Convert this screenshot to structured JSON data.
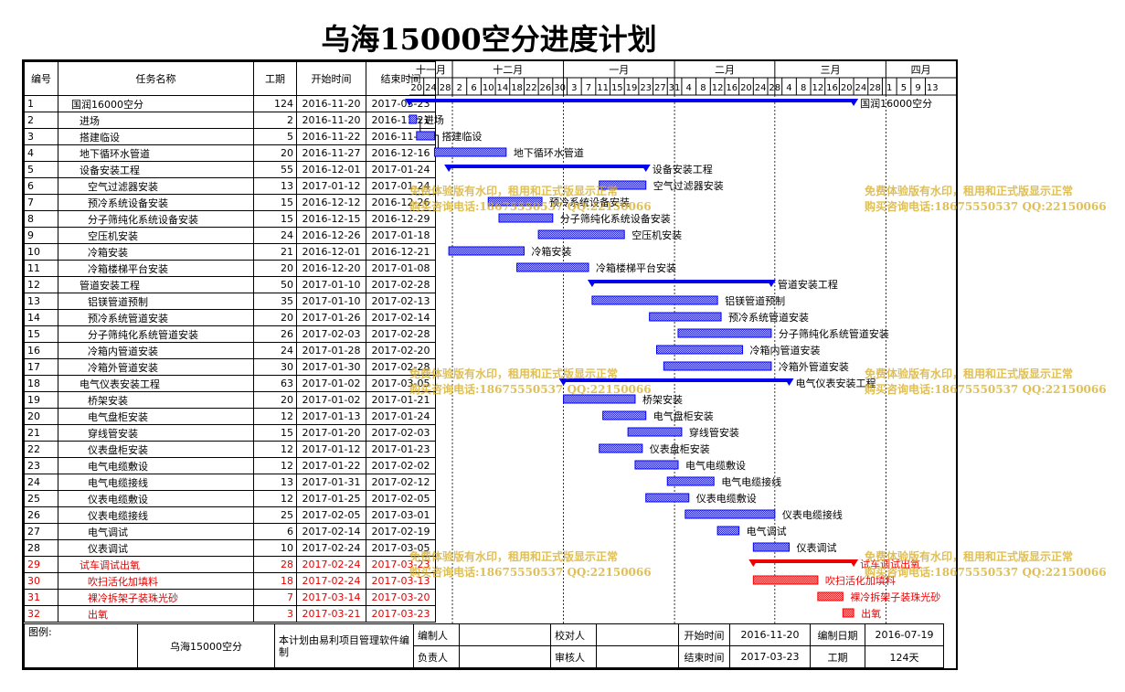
{
  "title": "乌海15000空分进度计划",
  "headers": {
    "id": "编号",
    "name": "任务名称",
    "dur": "工期",
    "start": "开始时间",
    "end": "结束时间"
  },
  "timeline": {
    "months": [
      "十一月",
      "十二月",
      "一月",
      "二月",
      "三月",
      "四月"
    ],
    "days": [
      "20",
      "24",
      "28",
      "2",
      "6",
      "10",
      "14",
      "18",
      "22",
      "26",
      "30",
      "3",
      "7",
      "11",
      "15",
      "19",
      "23",
      "27",
      "31",
      "4",
      "8",
      "12",
      "16",
      "20",
      "24",
      "28",
      "4",
      "8",
      "12",
      "16",
      "20",
      "24",
      "28",
      "1",
      "5",
      "9",
      "13"
    ]
  },
  "tasks": [
    {
      "id": "1",
      "name": "国润16000空分",
      "dur": "124",
      "start": "2016-11-20",
      "end": "2017-03-23",
      "lvl": 0,
      "type": "summary",
      "color": "blue"
    },
    {
      "id": "2",
      "name": "进场",
      "dur": "2",
      "start": "2016-11-20",
      "end": "2016-11-21",
      "lvl": 1,
      "type": "task",
      "color": "blue"
    },
    {
      "id": "3",
      "name": "搭建临设",
      "dur": "5",
      "start": "2016-11-22",
      "end": "2016-11-26",
      "lvl": 1,
      "type": "task",
      "color": "blue"
    },
    {
      "id": "4",
      "name": "地下循环水管道",
      "dur": "20",
      "start": "2016-11-27",
      "end": "2016-12-16",
      "lvl": 1,
      "type": "task",
      "color": "blue"
    },
    {
      "id": "5",
      "name": "设备安装工程",
      "dur": "55",
      "start": "2016-12-01",
      "end": "2017-01-24",
      "lvl": 1,
      "type": "summary",
      "color": "blue"
    },
    {
      "id": "6",
      "name": "空气过滤器安装",
      "dur": "13",
      "start": "2017-01-12",
      "end": "2017-01-24",
      "lvl": 2,
      "type": "task",
      "color": "blue"
    },
    {
      "id": "7",
      "name": "预冷系统设备安装",
      "dur": "15",
      "start": "2016-12-12",
      "end": "2016-12-26",
      "lvl": 2,
      "type": "task",
      "color": "blue"
    },
    {
      "id": "8",
      "name": "分子筛纯化系统设备安装",
      "dur": "15",
      "start": "2016-12-15",
      "end": "2016-12-29",
      "lvl": 2,
      "type": "task",
      "color": "blue"
    },
    {
      "id": "9",
      "name": "空压机安装",
      "dur": "24",
      "start": "2016-12-26",
      "end": "2017-01-18",
      "lvl": 2,
      "type": "task",
      "color": "blue"
    },
    {
      "id": "10",
      "name": "冷箱安装",
      "dur": "21",
      "start": "2016-12-01",
      "end": "2016-12-21",
      "lvl": 2,
      "type": "task",
      "color": "blue"
    },
    {
      "id": "11",
      "name": "冷箱楼梯平台安装",
      "dur": "20",
      "start": "2016-12-20",
      "end": "2017-01-08",
      "lvl": 2,
      "type": "task",
      "color": "blue"
    },
    {
      "id": "12",
      "name": "管道安装工程",
      "dur": "50",
      "start": "2017-01-10",
      "end": "2017-02-28",
      "lvl": 1,
      "type": "summary",
      "color": "blue"
    },
    {
      "id": "13",
      "name": "铝镁管道预制",
      "dur": "35",
      "start": "2017-01-10",
      "end": "2017-02-13",
      "lvl": 2,
      "type": "task",
      "color": "blue"
    },
    {
      "id": "14",
      "name": "预冷系统管道安装",
      "dur": "20",
      "start": "2017-01-26",
      "end": "2017-02-14",
      "lvl": 2,
      "type": "task",
      "color": "blue"
    },
    {
      "id": "15",
      "name": "分子筛纯化系统管道安装",
      "dur": "26",
      "start": "2017-02-03",
      "end": "2017-02-28",
      "lvl": 2,
      "type": "task",
      "color": "blue"
    },
    {
      "id": "16",
      "name": "冷箱内管道安装",
      "dur": "24",
      "start": "2017-01-28",
      "end": "2017-02-20",
      "lvl": 2,
      "type": "task",
      "color": "blue"
    },
    {
      "id": "17",
      "name": "冷箱外管道安装",
      "dur": "30",
      "start": "2017-01-30",
      "end": "2017-02-28",
      "lvl": 2,
      "type": "task",
      "color": "blue"
    },
    {
      "id": "18",
      "name": "电气仪表安装工程",
      "dur": "63",
      "start": "2017-01-02",
      "end": "2017-03-05",
      "lvl": 1,
      "type": "summary",
      "color": "blue"
    },
    {
      "id": "19",
      "name": "桥架安装",
      "dur": "20",
      "start": "2017-01-02",
      "end": "2017-01-21",
      "lvl": 2,
      "type": "task",
      "color": "blue"
    },
    {
      "id": "20",
      "name": "电气盘柜安装",
      "dur": "12",
      "start": "2017-01-13",
      "end": "2017-01-24",
      "lvl": 2,
      "type": "task",
      "color": "blue"
    },
    {
      "id": "21",
      "name": "穿线管安装",
      "dur": "15",
      "start": "2017-01-20",
      "end": "2017-02-03",
      "lvl": 2,
      "type": "task",
      "color": "blue"
    },
    {
      "id": "22",
      "name": "仪表盘柜安装",
      "dur": "12",
      "start": "2017-01-12",
      "end": "2017-01-23",
      "lvl": 2,
      "type": "task",
      "color": "blue"
    },
    {
      "id": "23",
      "name": "电气电缆敷设",
      "dur": "12",
      "start": "2017-01-22",
      "end": "2017-02-02",
      "lvl": 2,
      "type": "task",
      "color": "blue"
    },
    {
      "id": "24",
      "name": "电气电缆接线",
      "dur": "13",
      "start": "2017-01-31",
      "end": "2017-02-12",
      "lvl": 2,
      "type": "task",
      "color": "blue"
    },
    {
      "id": "25",
      "name": "仪表电缆敷设",
      "dur": "12",
      "start": "2017-01-25",
      "end": "2017-02-05",
      "lvl": 2,
      "type": "task",
      "color": "blue"
    },
    {
      "id": "26",
      "name": "仪表电缆接线",
      "dur": "25",
      "start": "2017-02-05",
      "end": "2017-03-01",
      "lvl": 2,
      "type": "task",
      "color": "blue"
    },
    {
      "id": "27",
      "name": "电气调试",
      "dur": "6",
      "start": "2017-02-14",
      "end": "2017-02-19",
      "lvl": 2,
      "type": "task",
      "color": "blue"
    },
    {
      "id": "28",
      "name": "仪表调试",
      "dur": "10",
      "start": "2017-02-24",
      "end": "2017-03-05",
      "lvl": 2,
      "type": "task",
      "color": "blue"
    },
    {
      "id": "29",
      "name": "试车调试出氧",
      "dur": "28",
      "start": "2017-02-24",
      "end": "2017-03-23",
      "lvl": 1,
      "type": "summary",
      "color": "red"
    },
    {
      "id": "30",
      "name": "吹扫活化加填料",
      "dur": "18",
      "start": "2017-02-24",
      "end": "2017-03-13",
      "lvl": 2,
      "type": "task",
      "color": "red"
    },
    {
      "id": "31",
      "name": "裸冷拆架子装珠光砂",
      "dur": "7",
      "start": "2017-03-14",
      "end": "2017-03-20",
      "lvl": 2,
      "type": "task",
      "color": "red"
    },
    {
      "id": "32",
      "name": "出氧",
      "dur": "3",
      "start": "2017-03-21",
      "end": "2017-03-23",
      "lvl": 2,
      "type": "task",
      "color": "red"
    }
  ],
  "footer": {
    "legend_label": "图例:",
    "project": "乌海15000空分",
    "note": "本计划由易利项目管理软件编制",
    "labels": {
      "editor": "编制人",
      "checker": "校对人",
      "start": "开始时间",
      "date": "编制日期",
      "owner": "负责人",
      "reviewer": "审核人",
      "end": "结束时间",
      "duration": "工期"
    },
    "values": {
      "start": "2016-11-20",
      "date": "2016-07-19",
      "end": "2017-03-23",
      "duration": "124天"
    }
  },
  "watermark": {
    "line1": "免费体验版有水印，租用和正式版显示正常",
    "line2": "购买咨询电话:18675550537 QQ:22150066"
  },
  "colors": {
    "blue": "#0000ee",
    "red": "#ee0000",
    "border": "#000000",
    "watermark": "#d4aa1e"
  }
}
